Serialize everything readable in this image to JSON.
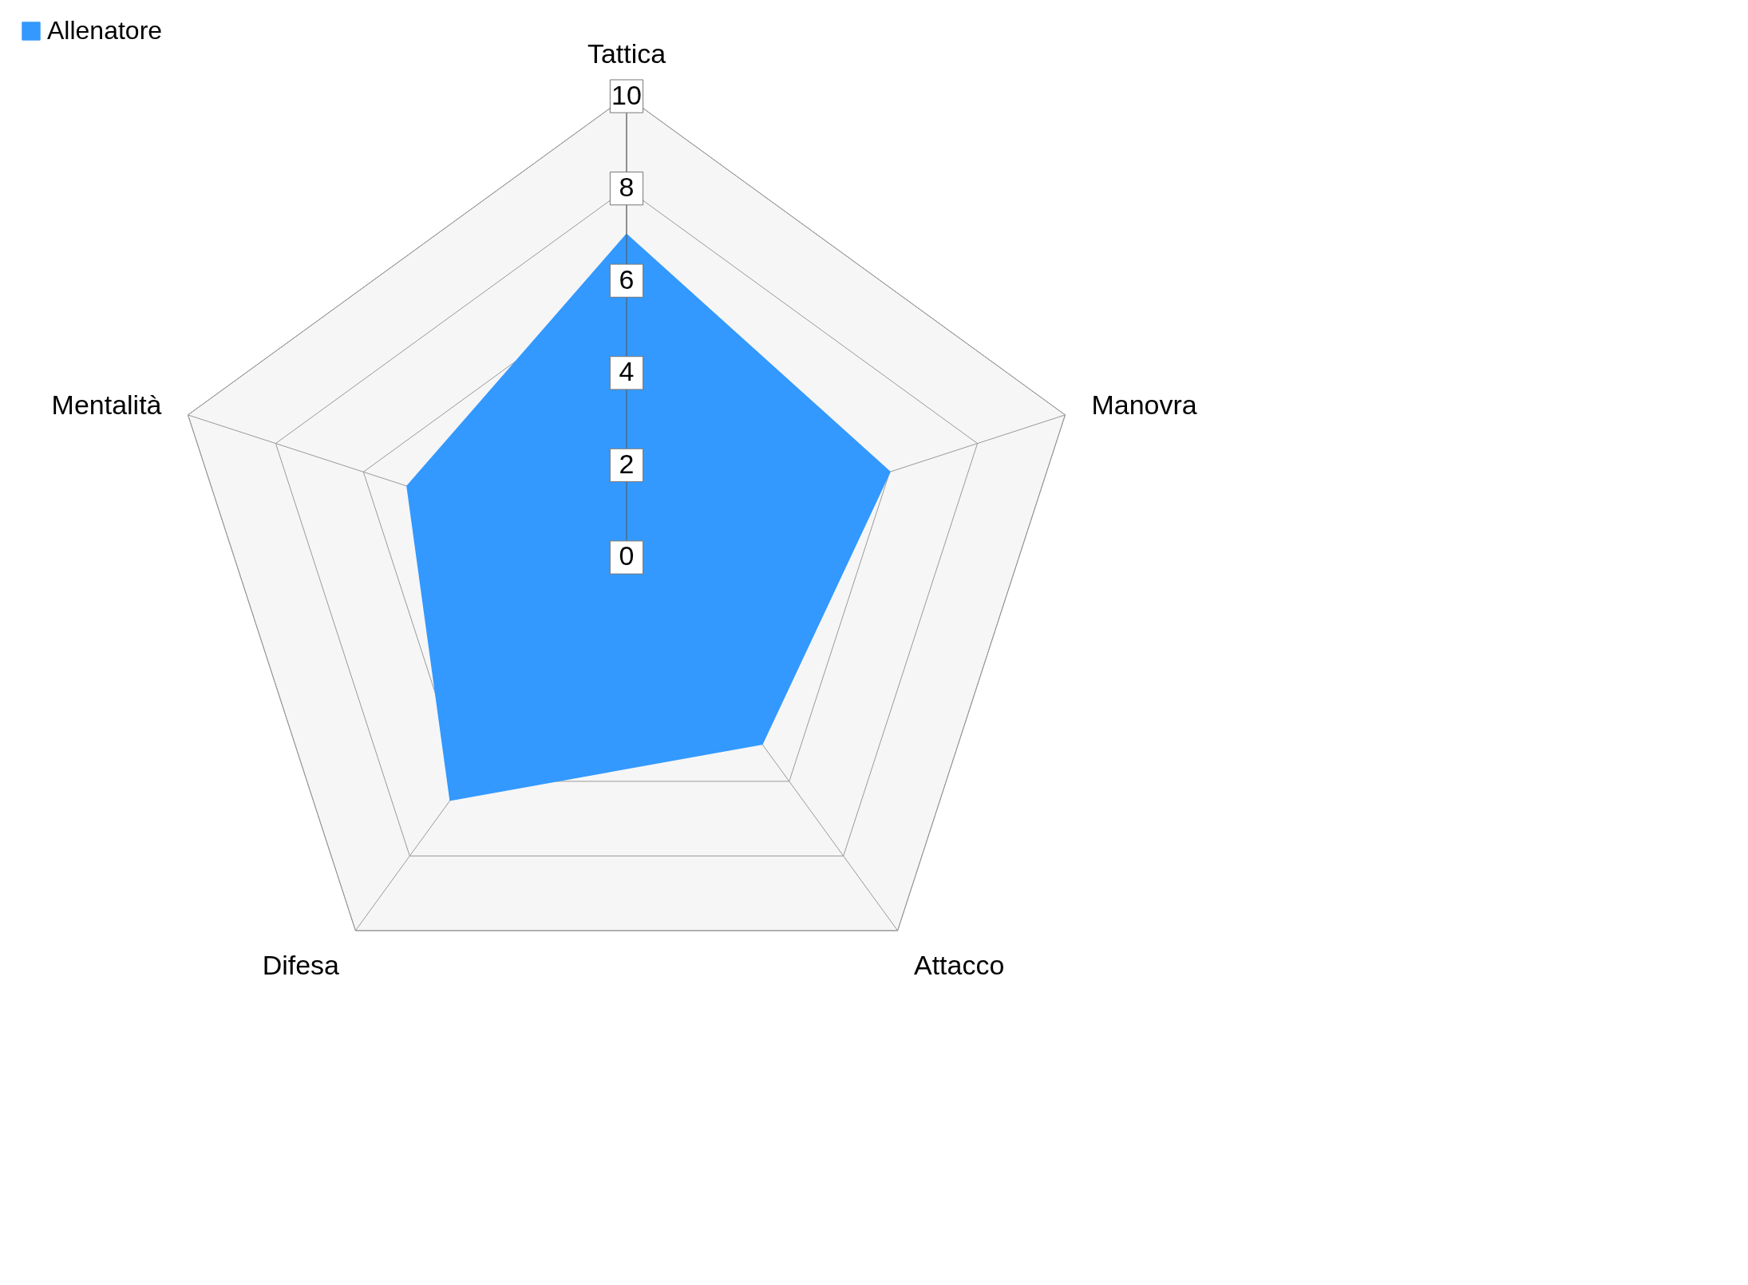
{
  "chart_data": {
    "type": "radar",
    "categories": [
      "Tattica",
      "Manovra",
      "Attacco",
      "Difesa",
      "Mentalità"
    ],
    "series": [
      {
        "name": "Allenatore",
        "color": "#3399ff",
        "values": [
          7,
          6,
          5,
          6.5,
          5
        ]
      }
    ],
    "ylim": [
      0,
      10
    ],
    "yticks": [
      0,
      2,
      4,
      6,
      8,
      10
    ],
    "grid": true,
    "legend": "top left"
  }
}
